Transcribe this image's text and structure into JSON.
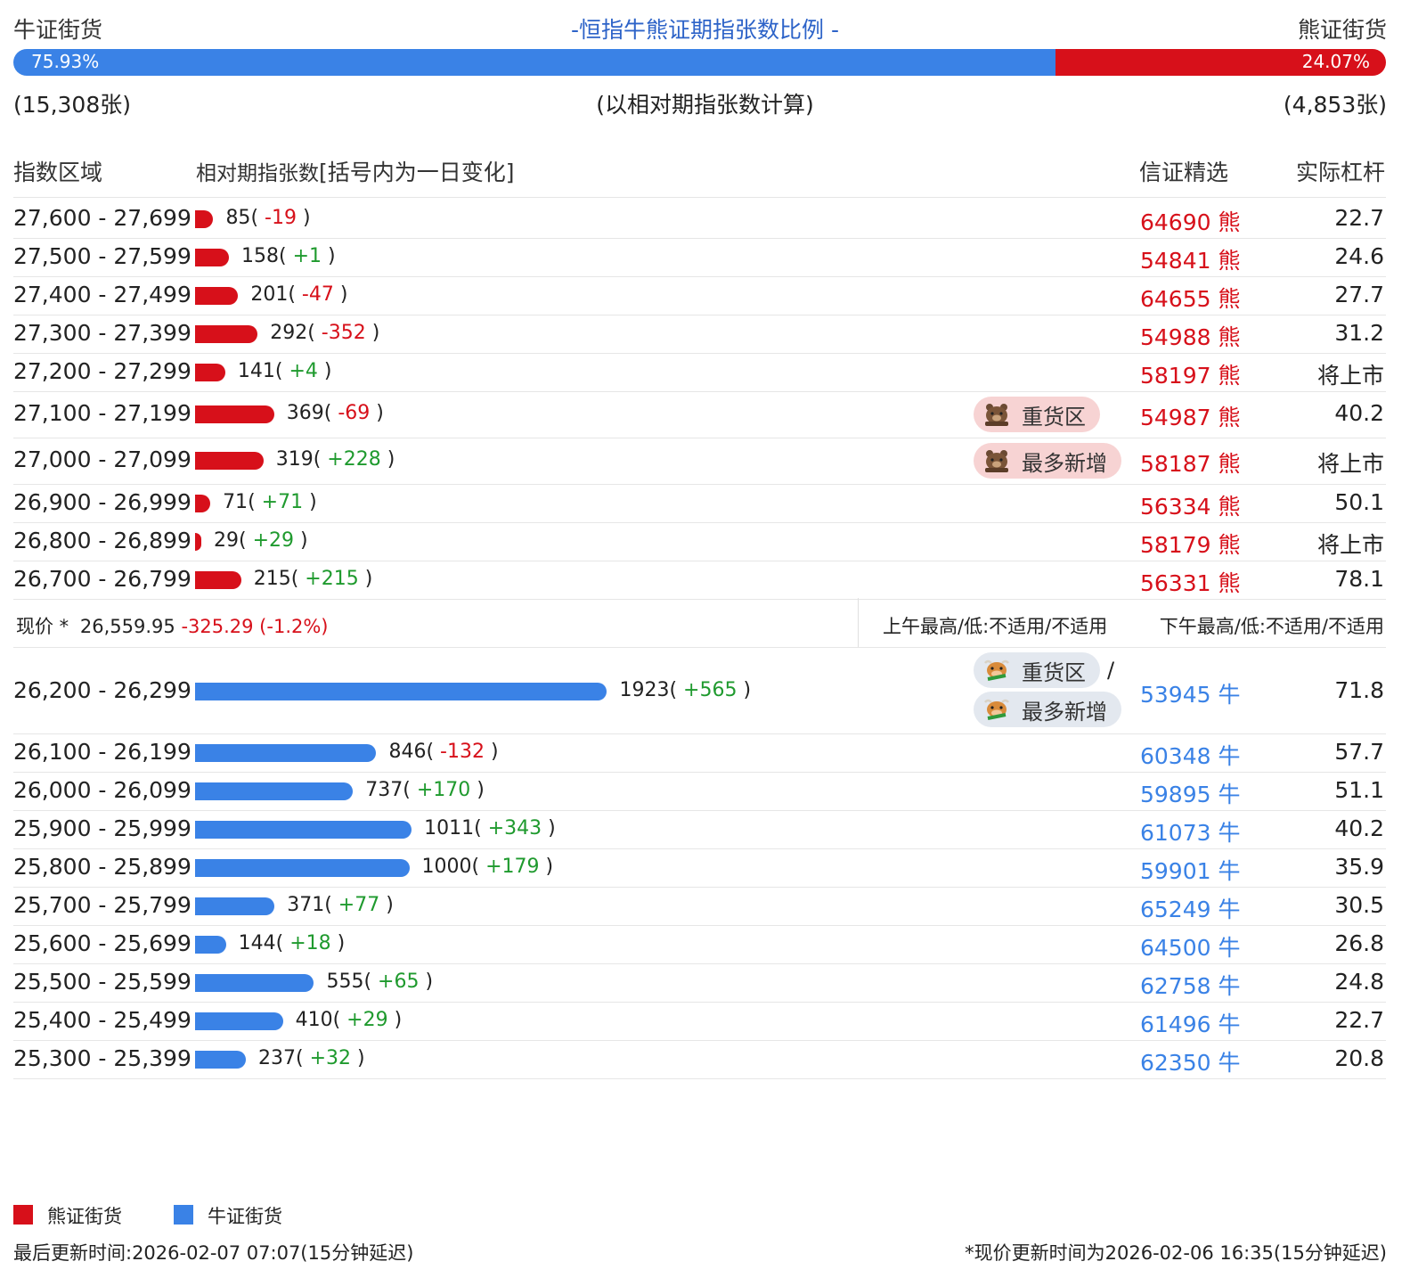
{
  "header": {
    "bull_title": "牛证街货",
    "center_title": "-恒指牛熊证期指张数比例 -",
    "bear_title": "熊证街货",
    "bull_pct": "75.93%",
    "bear_pct": "24.07%",
    "bull_fraction": 0.7593,
    "bull_count": "(15,308张)",
    "note": "(以相对期指张数计算)",
    "bear_count": "(4,853张)"
  },
  "columns": {
    "range": "指数区域",
    "contracts": "相对期指张数",
    "contracts_note": "[括号内为一日变化]",
    "pick": "信证精选",
    "leverage": "实际杠杆"
  },
  "bear_rows": [
    {
      "range": "27,600 - 27,699",
      "count": "85",
      "change": "-19",
      "code": "64690",
      "kind": "熊",
      "lev": "22.7"
    },
    {
      "range": "27,500 - 27,599",
      "count": "158",
      "change": "+1",
      "code": "54841",
      "kind": "熊",
      "lev": "24.6"
    },
    {
      "range": "27,400 - 27,499",
      "count": "201",
      "change": "-47",
      "code": "64655",
      "kind": "熊",
      "lev": "27.7"
    },
    {
      "range": "27,300 - 27,399",
      "count": "292",
      "change": "-352",
      "code": "54988",
      "kind": "熊",
      "lev": "31.2"
    },
    {
      "range": "27,200 - 27,299",
      "count": "141",
      "change": "+4",
      "code": "58197",
      "kind": "熊",
      "lev": "将上市"
    },
    {
      "range": "27,100 - 27,199",
      "count": "369",
      "change": "-69",
      "code": "54987",
      "kind": "熊",
      "lev": "40.2",
      "tag": "重货区"
    },
    {
      "range": "27,000 - 27,099",
      "count": "319",
      "change": "+228",
      "code": "58187",
      "kind": "熊",
      "lev": "将上市",
      "tag": "最多新增"
    },
    {
      "range": "26,900 - 26,999",
      "count": "71",
      "change": "+71",
      "code": "56334",
      "kind": "熊",
      "lev": "50.1"
    },
    {
      "range": "26,800 - 26,899",
      "count": "29",
      "change": "+29",
      "code": "58179",
      "kind": "熊",
      "lev": "将上市"
    },
    {
      "range": "26,700 - 26,799",
      "count": "215",
      "change": "+215",
      "code": "56331",
      "kind": "熊",
      "lev": "78.1"
    }
  ],
  "price": {
    "label": "现价 *",
    "value": "26,559.95",
    "change": "-325.29 (-1.2%)",
    "am": "上午最高/低:不适用/不适用",
    "pm": "下午最高/低:不适用/不适用"
  },
  "bull_rows": [
    {
      "range": "26,200 - 26,299",
      "count": "1923",
      "change": "+565",
      "code": "53945",
      "kind": "牛",
      "lev": "71.8",
      "tag": "重货区",
      "tag2": "最多新增",
      "sep": "/"
    },
    {
      "range": "26,100 - 26,199",
      "count": "846",
      "change": "-132",
      "code": "60348",
      "kind": "牛",
      "lev": "57.7"
    },
    {
      "range": "26,000 - 26,099",
      "count": "737",
      "change": "+170",
      "code": "59895",
      "kind": "牛",
      "lev": "51.1"
    },
    {
      "range": "25,900 - 25,999",
      "count": "1011",
      "change": "+343",
      "code": "61073",
      "kind": "牛",
      "lev": "40.2"
    },
    {
      "range": "25,800 - 25,899",
      "count": "1000",
      "change": "+179",
      "code": "59901",
      "kind": "牛",
      "lev": "35.9"
    },
    {
      "range": "25,700 - 25,799",
      "count": "371",
      "change": "+77",
      "code": "65249",
      "kind": "牛",
      "lev": "30.5"
    },
    {
      "range": "25,600 - 25,699",
      "count": "144",
      "change": "+18",
      "code": "64500",
      "kind": "牛",
      "lev": "26.8"
    },
    {
      "range": "25,500 - 25,599",
      "count": "555",
      "change": "+65",
      "code": "62758",
      "kind": "牛",
      "lev": "24.8"
    },
    {
      "range": "25,400 - 25,499",
      "count": "410",
      "change": "+29",
      "code": "61496",
      "kind": "牛",
      "lev": "22.7"
    },
    {
      "range": "25,300 - 25,399",
      "count": "237",
      "change": "+32",
      "code": "62350",
      "kind": "牛",
      "lev": "20.8"
    }
  ],
  "legend": {
    "bear": "熊证街货",
    "bull": "牛证街货",
    "bear_color": "#d7101a",
    "bull_color": "#3a82e6"
  },
  "footer": {
    "updated": "最后更新时间:2026-02-07 07:07(15分钟延迟)",
    "price_updated": "*现价更新时间为2026-02-06 16:35(15分钟延迟)"
  }
}
